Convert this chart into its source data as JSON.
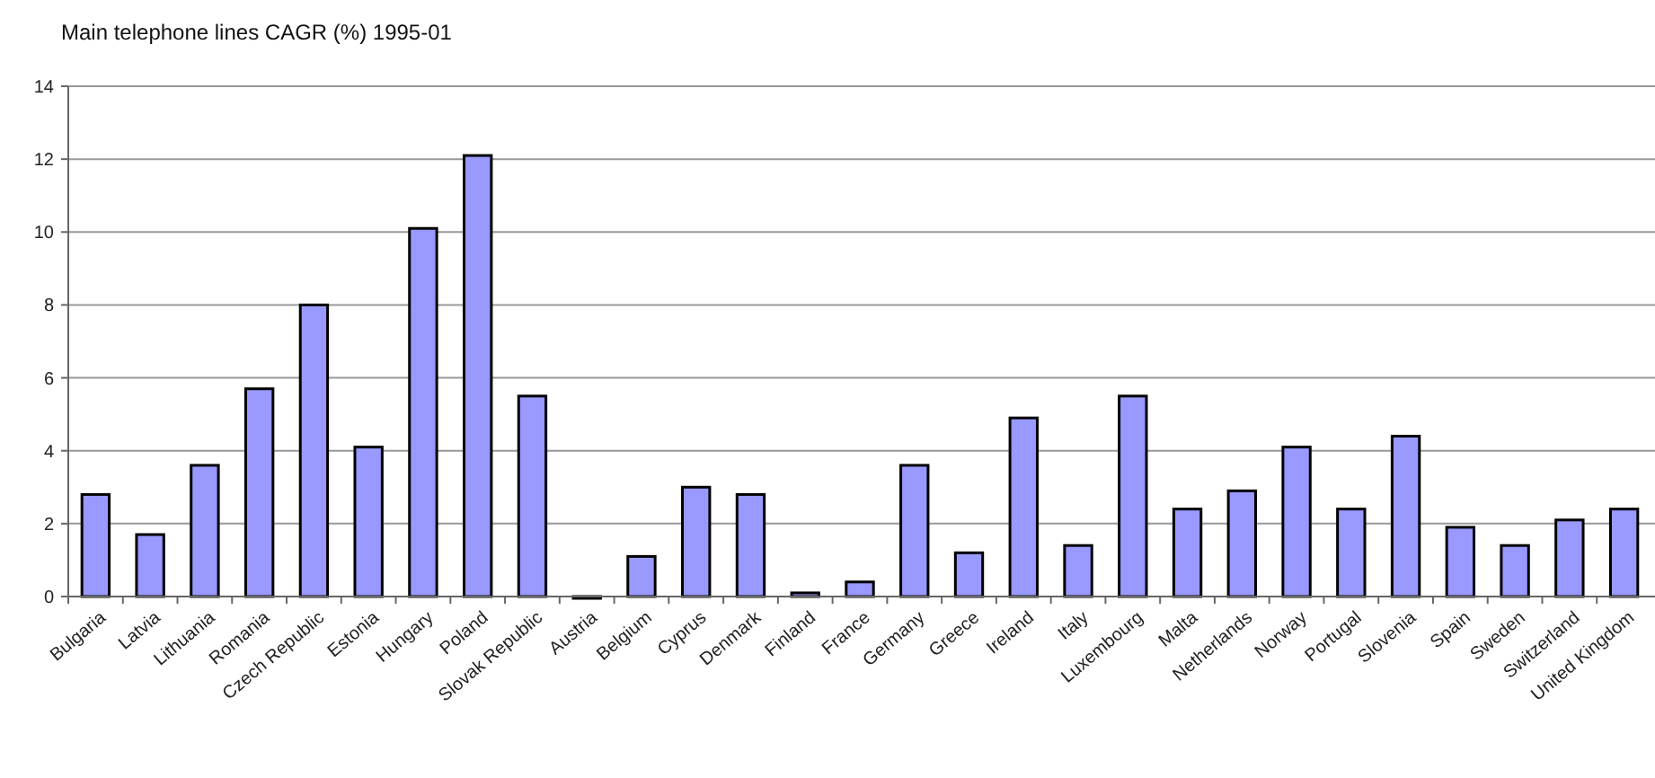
{
  "chart_data": {
    "type": "bar",
    "title": "Main telephone lines CAGR (%) 1995-01",
    "categories": [
      "Bulgaria",
      "Latvia",
      "Lithuania",
      "Romania",
      "Czech Republic",
      "Estonia",
      "Hungary",
      "Poland",
      "Slovak Republic",
      "Austria",
      "Belgium",
      "Cyprus",
      "Denmark",
      "Finland",
      "France",
      "Germany",
      "Greece",
      "Ireland",
      "Italy",
      "Luxembourg",
      "Malta",
      "Netherlands",
      "Norway",
      "Portugal",
      "Slovenia",
      "Spain",
      "Sweden",
      "Switzerland",
      "United Kingdom"
    ],
    "values": [
      2.8,
      1.7,
      3.6,
      5.7,
      8.0,
      4.1,
      10.1,
      12.1,
      5.5,
      0,
      1.1,
      3.0,
      2.8,
      0.1,
      0.4,
      3.6,
      1.2,
      4.9,
      1.4,
      5.5,
      2.4,
      2.9,
      4.1,
      2.4,
      4.4,
      1.9,
      1.4,
      2.1,
      2.4
    ],
    "color": "#9999ff",
    "ylim": [
      0,
      14
    ],
    "yticks": [
      0,
      2,
      4,
      6,
      8,
      10,
      12,
      14
    ],
    "grid": "y"
  }
}
